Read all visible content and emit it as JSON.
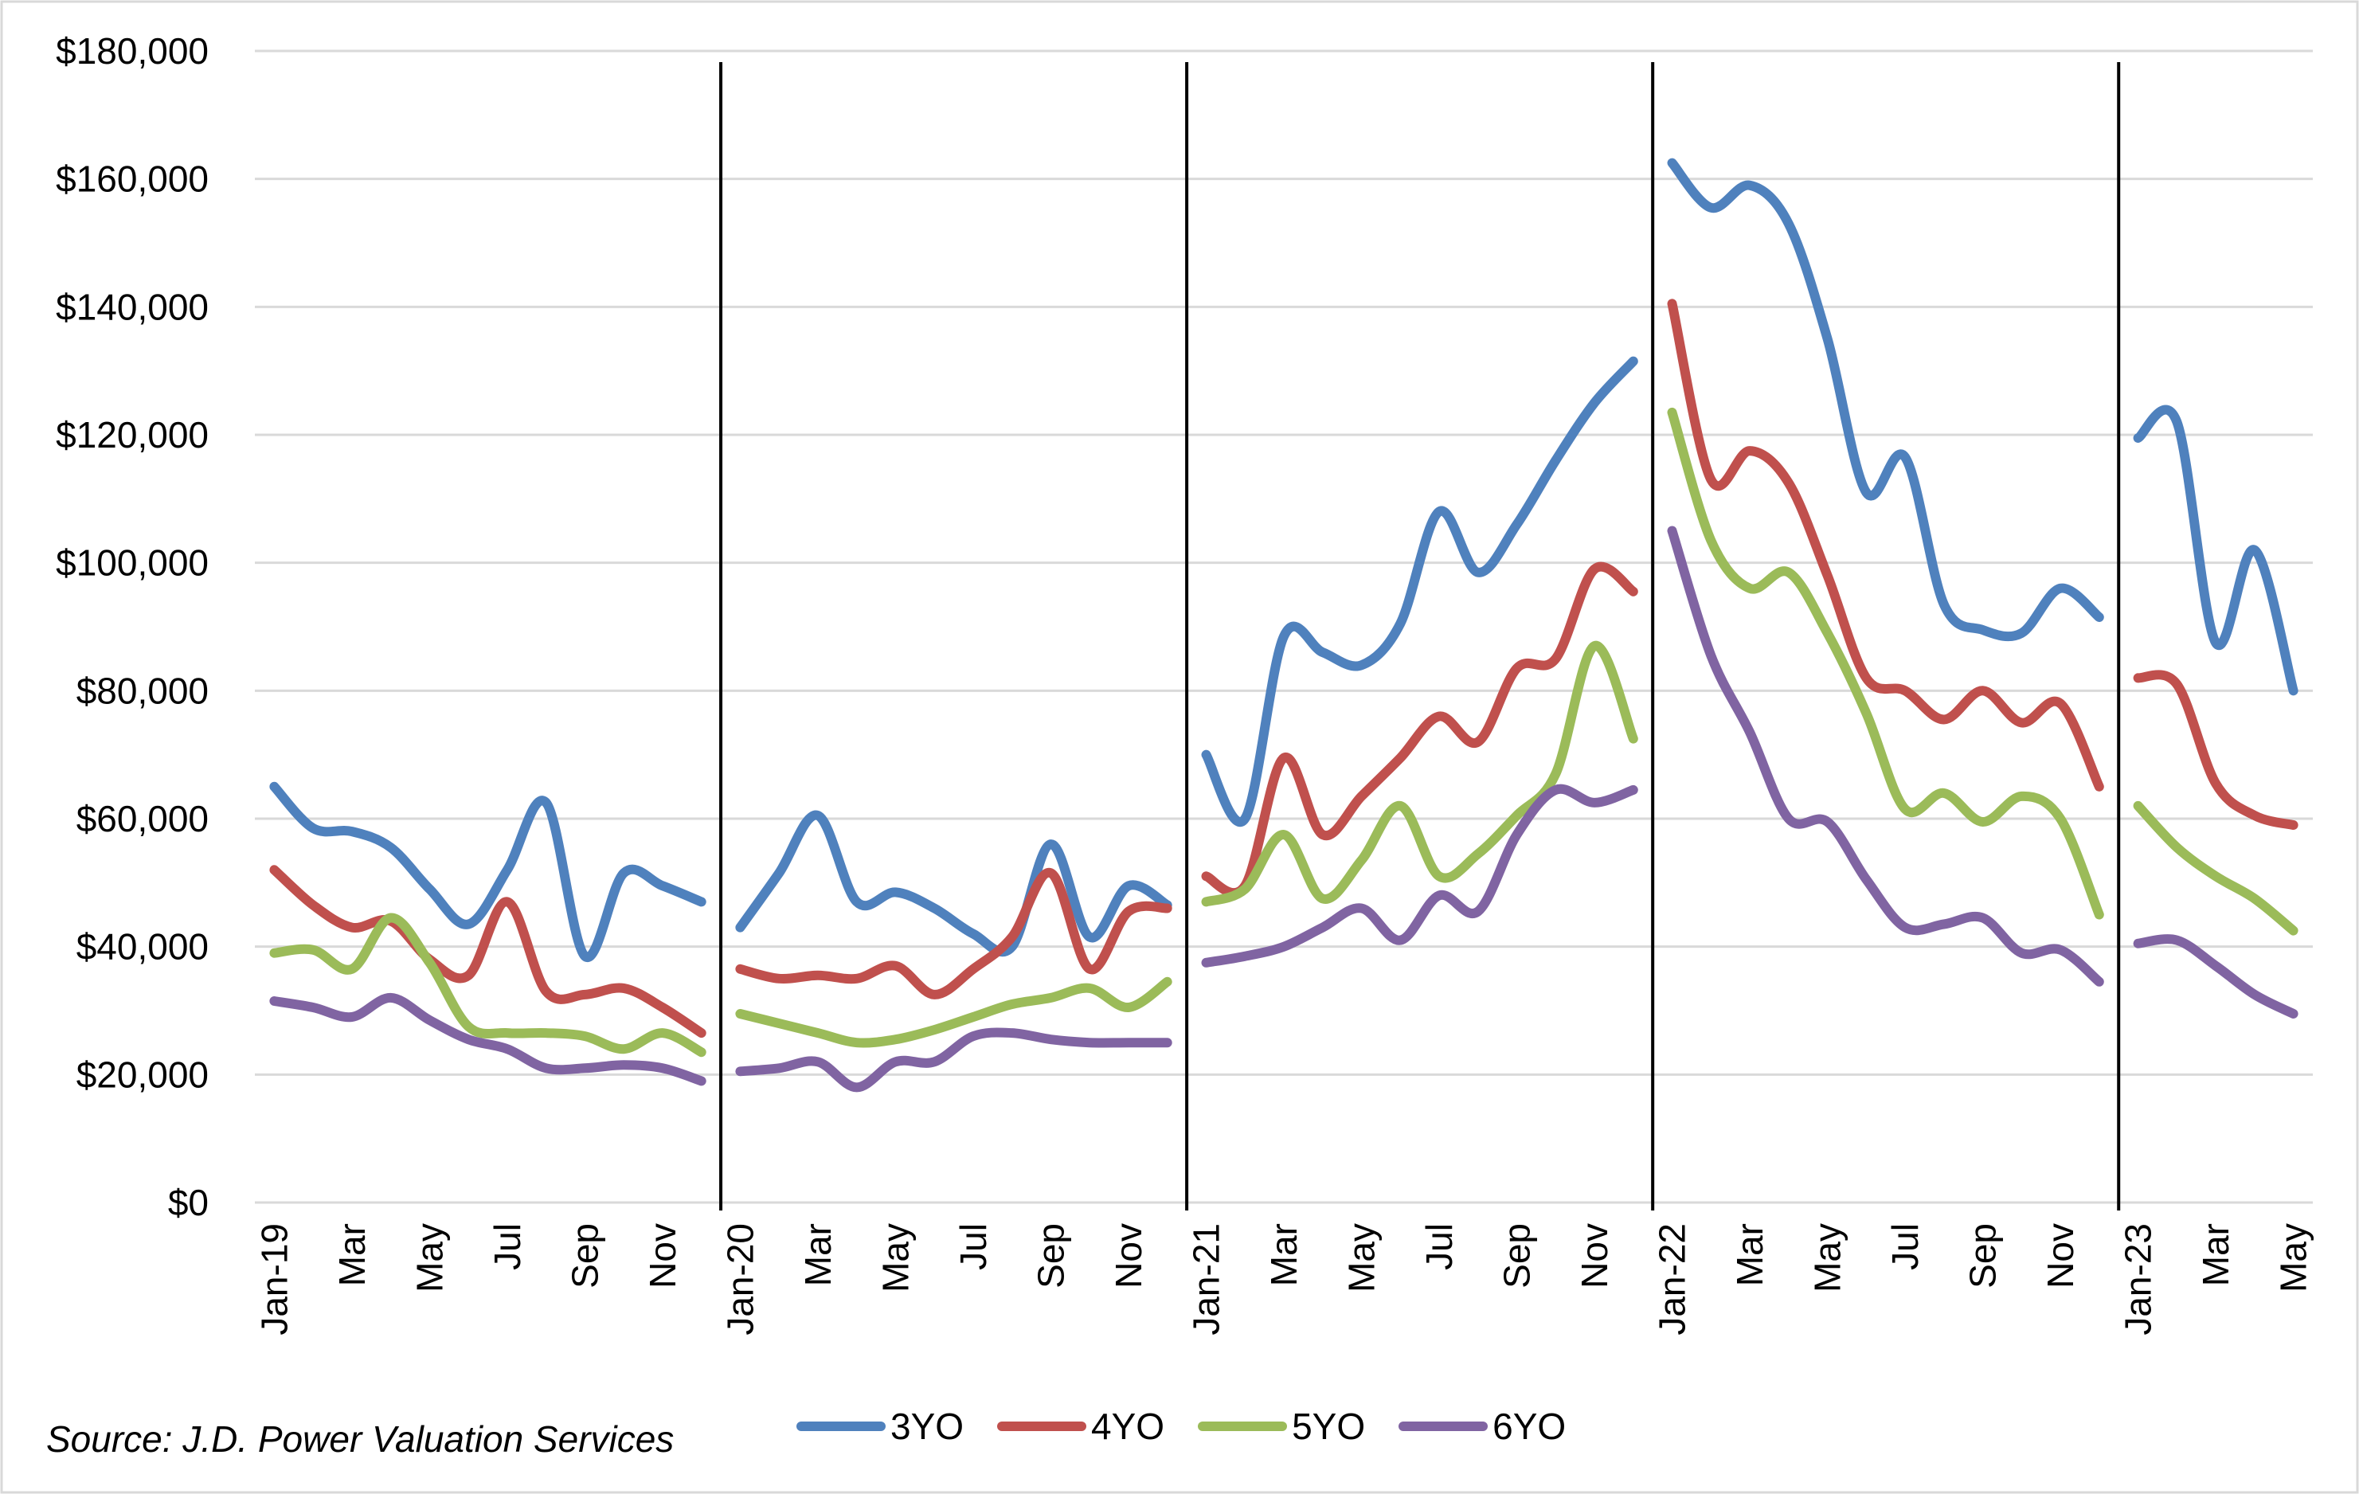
{
  "chart_data": {
    "type": "line",
    "title": "",
    "xlabel": "",
    "ylabel": "",
    "ylim": [
      0,
      180000
    ],
    "y_ticks": [
      0,
      20000,
      40000,
      60000,
      80000,
      100000,
      120000,
      140000,
      160000,
      180000
    ],
    "y_tick_labels": [
      "$0",
      "$20,000",
      "$40,000",
      "$60,000",
      "$80,000",
      "$100,000",
      "$120,000",
      "$140,000",
      "$160,000",
      "$180,000"
    ],
    "grid": "horizontal",
    "legend_position": "bottom",
    "year_separators": "vertical lines between years; lines broken at each year",
    "x_months": [
      "Jan-19",
      "Feb-19",
      "Mar-19",
      "Apr-19",
      "May-19",
      "Jun-19",
      "Jul-19",
      "Aug-19",
      "Sep-19",
      "Oct-19",
      "Nov-19",
      "Dec-19",
      "Jan-20",
      "Feb-20",
      "Mar-20",
      "Apr-20",
      "May-20",
      "Jun-20",
      "Jul-20",
      "Aug-20",
      "Sep-20",
      "Oct-20",
      "Nov-20",
      "Dec-20",
      "Jan-21",
      "Feb-21",
      "Mar-21",
      "Apr-21",
      "May-21",
      "Jun-21",
      "Jul-21",
      "Aug-21",
      "Sep-21",
      "Oct-21",
      "Nov-21",
      "Dec-21",
      "Jan-22",
      "Feb-22",
      "Mar-22",
      "Apr-22",
      "May-22",
      "Jun-22",
      "Jul-22",
      "Aug-22",
      "Sep-22",
      "Oct-22",
      "Nov-22",
      "Dec-22",
      "Jan-23",
      "Feb-23",
      "Mar-23",
      "Apr-23",
      "May-23"
    ],
    "x_tick_labels": [
      {
        "index": 0,
        "label": "Jan-19"
      },
      {
        "index": 2,
        "label": "Mar"
      },
      {
        "index": 4,
        "label": "May"
      },
      {
        "index": 6,
        "label": "Jul"
      },
      {
        "index": 8,
        "label": "Sep"
      },
      {
        "index": 10,
        "label": "Nov"
      },
      {
        "index": 12,
        "label": "Jan-20"
      },
      {
        "index": 14,
        "label": "Mar"
      },
      {
        "index": 16,
        "label": "May"
      },
      {
        "index": 18,
        "label": "Jul"
      },
      {
        "index": 20,
        "label": "Sep"
      },
      {
        "index": 22,
        "label": "Nov"
      },
      {
        "index": 24,
        "label": "Jan-21"
      },
      {
        "index": 26,
        "label": "Mar"
      },
      {
        "index": 28,
        "label": "May"
      },
      {
        "index": 30,
        "label": "Jul"
      },
      {
        "index": 32,
        "label": "Sep"
      },
      {
        "index": 34,
        "label": "Nov"
      },
      {
        "index": 36,
        "label": "Jan-22"
      },
      {
        "index": 38,
        "label": "Mar"
      },
      {
        "index": 40,
        "label": "May"
      },
      {
        "index": 42,
        "label": "Jul"
      },
      {
        "index": 44,
        "label": "Sep"
      },
      {
        "index": 46,
        "label": "Nov"
      },
      {
        "index": 48,
        "label": "Jan-23"
      },
      {
        "index": 50,
        "label": "Mar"
      },
      {
        "index": 52,
        "label": "May"
      }
    ],
    "segments": [
      {
        "start": 0,
        "end": 11
      },
      {
        "start": 12,
        "end": 23
      },
      {
        "start": 24,
        "end": 35
      },
      {
        "start": 36,
        "end": 47
      },
      {
        "start": 48,
        "end": 52
      }
    ],
    "series": [
      {
        "name": "3YO",
        "color": "#4f81bd",
        "values": [
          65000,
          58500,
          58000,
          55500,
          49000,
          43500,
          52000,
          62500,
          38500,
          51500,
          49500,
          47000,
          43000,
          51500,
          60500,
          47000,
          48500,
          46000,
          42000,
          40000,
          56000,
          41500,
          49500,
          46500,
          70000,
          60000,
          88500,
          86000,
          84000,
          90500,
          108000,
          98500,
          106000,
          116000,
          125000,
          131500,
          162500,
          155500,
          159000,
          153000,
          135000,
          111000,
          116500,
          93500,
          89500,
          89000,
          96000,
          91500,
          119500,
          122000,
          87500,
          102000,
          80000
        ]
      },
      {
        "name": "4YO",
        "color": "#c0504d",
        "values": [
          52000,
          46500,
          43000,
          44000,
          38000,
          35500,
          47000,
          33000,
          32500,
          33500,
          30500,
          26500,
          36500,
          35000,
          35500,
          35000,
          37000,
          32500,
          36500,
          41500,
          51500,
          36500,
          45500,
          46000,
          51000,
          49500,
          69500,
          57500,
          63500,
          69500,
          76000,
          72000,
          83500,
          85000,
          99000,
          95500,
          140500,
          113000,
          117500,
          112500,
          98000,
          82000,
          80000,
          75500,
          80000,
          75000,
          78000,
          65000,
          82000,
          81000,
          65500,
          60500,
          59000
        ]
      },
      {
        "name": "5YO",
        "color": "#9bbb59",
        "values": [
          39000,
          39500,
          36500,
          44500,
          37500,
          27500,
          26500,
          26500,
          26000,
          24000,
          26500,
          23500,
          29500,
          28000,
          26500,
          25000,
          25500,
          27000,
          29000,
          31000,
          32000,
          33500,
          30500,
          34500,
          47000,
          49000,
          57500,
          47500,
          53500,
          62000,
          51000,
          54500,
          60500,
          67000,
          87000,
          72500,
          123500,
          103500,
          96000,
          98500,
          89000,
          76500,
          61500,
          64000,
          59500,
          63500,
          60000,
          45000,
          62000,
          55500,
          51000,
          47500,
          42500
        ]
      },
      {
        "name": "6YO",
        "color": "#8064a2",
        "values": [
          31500,
          30500,
          29000,
          32000,
          28500,
          25500,
          24000,
          21000,
          21000,
          21500,
          21000,
          19000,
          20500,
          21000,
          22000,
          18000,
          22000,
          22000,
          26000,
          26500,
          25500,
          25000,
          25000,
          25000,
          37500,
          38500,
          40000,
          43000,
          46000,
          41000,
          48000,
          45500,
          57500,
          64500,
          62500,
          64500,
          105000,
          85500,
          73500,
          60000,
          59500,
          50500,
          43000,
          43500,
          44500,
          39000,
          39500,
          34500,
          40500,
          41000,
          37000,
          32500,
          29500
        ]
      }
    ]
  },
  "footer": {
    "source_note": "Source: J.D. Power Valuation Services"
  }
}
